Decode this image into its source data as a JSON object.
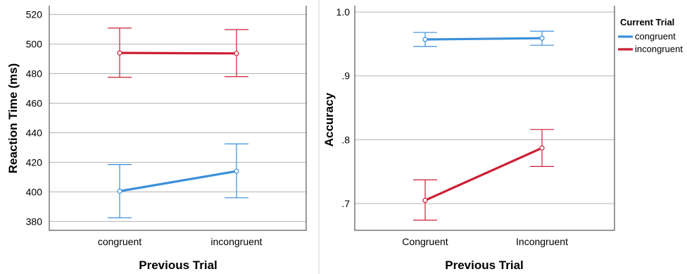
{
  "chart_data": [
    {
      "type": "line",
      "xlabel": "Previous Trial",
      "ylabel": "Reaction Time (ms)",
      "categories": [
        "congruent",
        "incongruent"
      ],
      "ylim": [
        374,
        526
      ],
      "yticks": [
        380,
        400,
        420,
        440,
        460,
        480,
        500,
        520
      ],
      "ytick_labels": [
        "380",
        "400",
        "420",
        "440",
        "460",
        "480",
        "500",
        "520"
      ],
      "grid": true,
      "series": [
        {
          "key": "congruent",
          "color": "#3b8fd9",
          "values": [
            400.5,
            414.0
          ],
          "lower": [
            382.5,
            396.0
          ],
          "upper": [
            418.5,
            432.5
          ]
        },
        {
          "key": "incongruent",
          "color": "#cc1f33",
          "values": [
            494.0,
            493.7
          ],
          "lower": [
            477.5,
            478.0
          ],
          "upper": [
            510.8,
            509.8
          ]
        }
      ]
    },
    {
      "type": "line",
      "xlabel": "Previous Trial",
      "ylabel": "Accuracy",
      "categories": [
        "Congruent",
        "Incongruent"
      ],
      "ylim": [
        0.658,
        1.01
      ],
      "yticks": [
        0.7,
        0.8,
        0.9,
        1.0
      ],
      "ytick_labels": [
        ".7",
        ".8",
        ".9",
        "1.0"
      ],
      "grid": true,
      "series": [
        {
          "name": "congruent",
          "color": "#3b8fd9",
          "values": [
            0.957,
            0.959
          ],
          "lower": [
            0.946,
            0.948
          ],
          "upper": [
            0.968,
            0.97
          ]
        },
        {
          "name": "incongruent",
          "color": "#cc1f33",
          "values": [
            0.705,
            0.787
          ],
          "lower": [
            0.674,
            0.758
          ],
          "upper": [
            0.737,
            0.816
          ]
        }
      ],
      "legend": {
        "title": "Current Trial",
        "placement": "right"
      }
    }
  ]
}
